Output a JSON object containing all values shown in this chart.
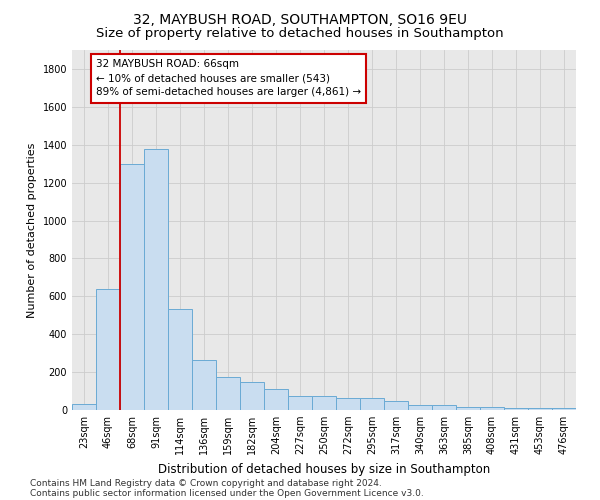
{
  "title_line1": "32, MAYBUSH ROAD, SOUTHAMPTON, SO16 9EU",
  "title_line2": "Size of property relative to detached houses in Southampton",
  "xlabel": "Distribution of detached houses by size in Southampton",
  "ylabel": "Number of detached properties",
  "categories": [
    "23sqm",
    "46sqm",
    "68sqm",
    "91sqm",
    "114sqm",
    "136sqm",
    "159sqm",
    "182sqm",
    "204sqm",
    "227sqm",
    "250sqm",
    "272sqm",
    "295sqm",
    "317sqm",
    "340sqm",
    "363sqm",
    "385sqm",
    "408sqm",
    "431sqm",
    "453sqm",
    "476sqm"
  ],
  "values": [
    30,
    640,
    1300,
    1380,
    535,
    265,
    175,
    150,
    110,
    75,
    75,
    65,
    65,
    50,
    25,
    25,
    18,
    18,
    8,
    8,
    8
  ],
  "bar_color": "#c9ddf0",
  "bar_edge_color": "#6aaad4",
  "vline_color": "#cc0000",
  "vline_x_index": 1.5,
  "annotation_text": "32 MAYBUSH ROAD: 66sqm\n← 10% of detached houses are smaller (543)\n89% of semi-detached houses are larger (4,861) →",
  "annotation_box_edge_color": "#cc0000",
  "annotation_bg": "white",
  "ylim": [
    0,
    1900
  ],
  "yticks": [
    0,
    200,
    400,
    600,
    800,
    1000,
    1200,
    1400,
    1600,
    1800
  ],
  "grid_color": "#cccccc",
  "bg_color": "#e8e8e8",
  "footnote1": "Contains HM Land Registry data © Crown copyright and database right 2024.",
  "footnote2": "Contains public sector information licensed under the Open Government Licence v3.0.",
  "title_fontsize": 10,
  "subtitle_fontsize": 9.5,
  "xlabel_fontsize": 8.5,
  "ylabel_fontsize": 8,
  "tick_fontsize": 7,
  "annotation_fontsize": 7.5,
  "footnote_fontsize": 6.5
}
